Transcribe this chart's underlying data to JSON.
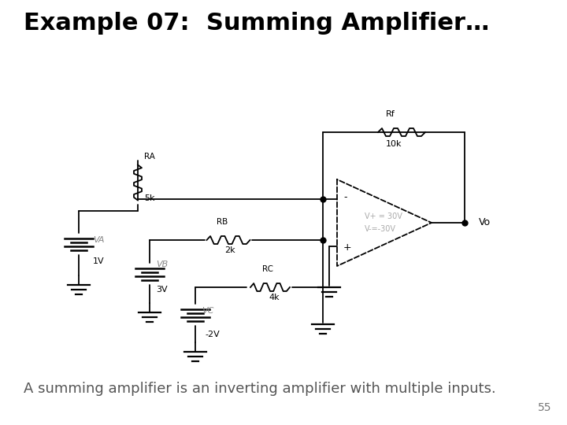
{
  "title": "Example 07:  Summing Amplifier…",
  "title_fontsize": 22,
  "bg_color": "#ffffff",
  "subtitle": "A summing amplifier is an inverting amplifier with multiple inputs.",
  "subtitle_fontsize": 13,
  "page_number": "55",
  "op_amp_color": "#aaaaaa",
  "text_color": "#000000",
  "label_color": "#aaaaaa"
}
